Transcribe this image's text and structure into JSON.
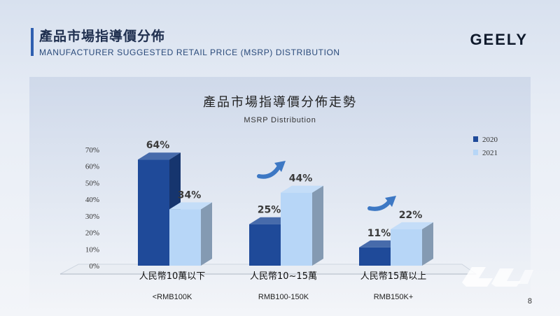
{
  "header": {
    "title_zh": "產品市場指導價分佈",
    "title_en": "MANUFACTURER SUGGESTED RETAIL PRICE (MSRP) DISTRIBUTION",
    "logo": "GEELY"
  },
  "page_number": "8",
  "watermark_icon": "dianche-watermark-icon",
  "colors": {
    "accent": "#2f5fb0",
    "series_2020": "#1f4a99",
    "series_2021": "#b7d6f7",
    "arrow": "#3d78c4"
  },
  "chart_data": {
    "type": "bar",
    "title": "產品市場指導價分佈走勢",
    "subtitle": "MSRP Distribution",
    "categories": [
      "人民幣10萬以下",
      "人民幣10~15萬",
      "人民幣15萬以上"
    ],
    "category_sublabels": [
      "<RMB100K",
      "RMB100-150K",
      "RMB150K+"
    ],
    "series": [
      {
        "name": "2020",
        "values": [
          64,
          25,
          11
        ],
        "labels": [
          "64%",
          "25%",
          "11%"
        ]
      },
      {
        "name": "2021",
        "values": [
          34,
          44,
          22
        ],
        "labels": [
          "34%",
          "44%",
          "22%"
        ]
      }
    ],
    "ylim": [
      0,
      70
    ],
    "yticks": [
      0,
      10,
      20,
      30,
      40,
      50,
      60,
      70
    ],
    "ytick_labels": [
      "0%",
      "10%",
      "20%",
      "30%",
      "40%",
      "50%",
      "60%",
      "70%"
    ],
    "legend_position": "top-right",
    "grid": false,
    "annotations": [
      "up-arrow",
      "up-arrow"
    ]
  }
}
